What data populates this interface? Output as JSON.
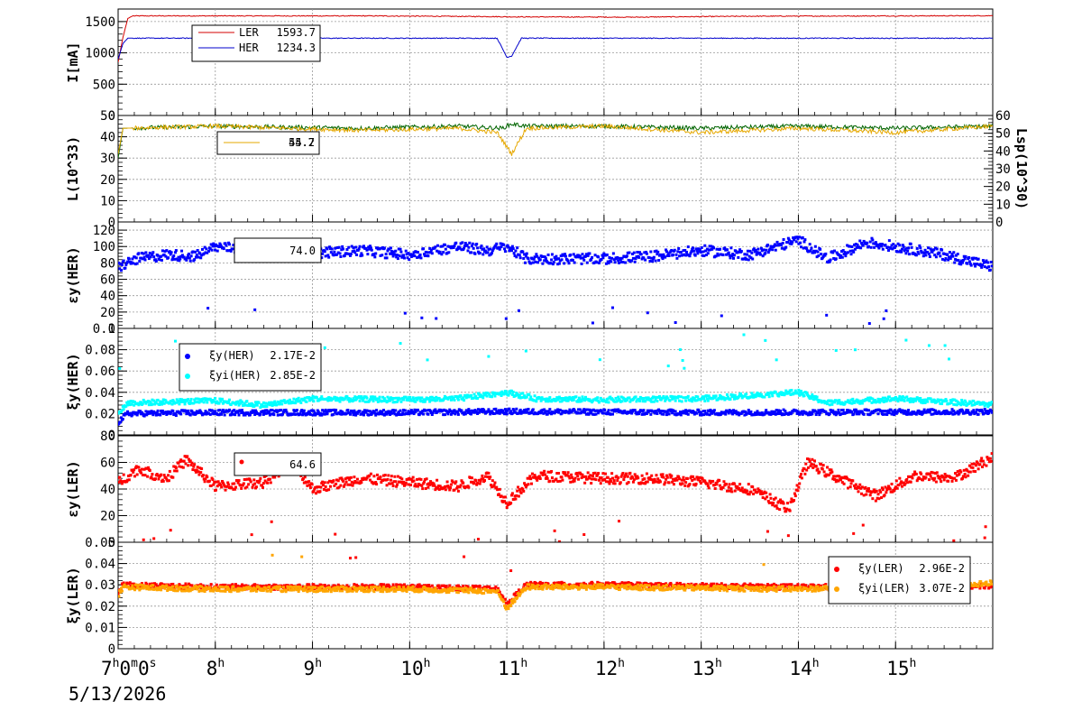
{
  "chart_data": {
    "type": "line",
    "x_start": "7h0m0s",
    "x_ticks": [
      "7h0m0s",
      "8h",
      "9h",
      "10h",
      "11h",
      "12h",
      "13h",
      "14h",
      "15h"
    ],
    "date": "5/13/2026",
    "x_range_hours": [
      7.0,
      16.0
    ],
    "panels": [
      {
        "id": "current",
        "ylabel": "I[mA]",
        "ylim": [
          0,
          1700
        ],
        "yticks": [
          "0",
          "500",
          "1000",
          "1500"
        ],
        "series": [
          {
            "name": "LER",
            "color": "#d40000",
            "legend_value": "1593.7",
            "x": [
              7.0,
              7.05,
              7.1,
              7.15,
              9.6,
              10.8,
              11.0,
              12.3,
              13.5,
              16.0
            ],
            "y": [
              850,
              1250,
              1550,
              1590,
              1590,
              1580,
              1575,
              1570,
              1585,
              1593
            ]
          },
          {
            "name": "HER",
            "color": "#0000cc",
            "legend_value": "1234.3",
            "x": [
              7.0,
              7.05,
              7.1,
              10.9,
              11.0,
              11.05,
              11.15,
              16.0
            ],
            "y": [
              900,
              1150,
              1234,
              1234,
              930,
              950,
              1234,
              1234
            ]
          }
        ]
      },
      {
        "id": "luminosity",
        "ylabel": "L(10^33)",
        "ylabel_right": "Lsp(10^30)",
        "ylim": [
          0,
          50
        ],
        "yticks": [
          "0",
          "10",
          "20",
          "30",
          "40",
          "50"
        ],
        "ylim_right": [
          0,
          60
        ],
        "yticks_right": [
          "0",
          "10",
          "20",
          "30",
          "40",
          "50",
          "60"
        ],
        "legend_values": [
          "55.7",
          "44.2"
        ],
        "series": [
          {
            "name": "L",
            "color": "#006400",
            "x": [
              7.0,
              7.05,
              8.0,
              9.5,
              10.5,
              10.95,
              11.05,
              11.2,
              12.0,
              13.0,
              14.0,
              15.0,
              16.0
            ],
            "y": [
              30,
              44,
              45,
              44,
              45,
              44,
              46,
              45,
              45,
              44,
              45,
              44,
              45
            ]
          },
          {
            "name": "Lsp",
            "color": "#e6a800",
            "x": [
              7.0,
              7.05,
              8.0,
              9.5,
              10.5,
              10.9,
              11.05,
              11.2,
              12.0,
              13.0,
              14.0,
              15.0,
              16.0
            ],
            "y": [
              32,
              44,
              45,
              43,
              44,
              42,
              32,
              44,
              45,
              42,
              44,
              42,
              45
            ]
          }
        ]
      },
      {
        "id": "eps_her",
        "ylabel": "εy(HER)",
        "ylim": [
          0,
          130
        ],
        "yticks": [
          "0",
          "20",
          "40",
          "60",
          "80",
          "100",
          "120"
        ],
        "legend_value": "74.0",
        "series": [
          {
            "name": "εy(HER)",
            "color": "#0000ff",
            "x": [
              7.0,
              7.2,
              7.5,
              7.8,
              8.0,
              8.5,
              9.0,
              9.5,
              10.0,
              10.5,
              10.8,
              11.0,
              11.2,
              11.5,
              12.0,
              12.5,
              13.0,
              13.5,
              14.0,
              14.3,
              14.7,
              15.0,
              15.5,
              16.0
            ],
            "y": [
              75,
              85,
              90,
              88,
              100,
              95,
              92,
              95,
              90,
              100,
              95,
              100,
              85,
              85,
              85,
              88,
              95,
              90,
              108,
              85,
              105,
              100,
              90,
              75
            ]
          }
        ]
      },
      {
        "id": "xi_her",
        "ylabel": "ξy(HER)",
        "ylim": [
          0,
          0.1
        ],
        "yticks": [
          "0",
          "0.02",
          "0.04",
          "0.06",
          "0.08",
          "0.1"
        ],
        "series": [
          {
            "name": "ξy(HER)",
            "legend_value": "2.17E-2",
            "color": "#0000ff",
            "x": [
              7.0,
              7.1,
              8.0,
              10.0,
              11.0,
              13.0,
              16.0
            ],
            "y": [
              0.012,
              0.02,
              0.021,
              0.021,
              0.022,
              0.021,
              0.0217
            ]
          },
          {
            "name": "ξyi(HER)",
            "legend_value": "2.85E-2",
            "color": "#00ffff",
            "x": [
              7.0,
              7.1,
              8.0,
              8.5,
              9.0,
              10.0,
              10.5,
              11.0,
              11.3,
              12.0,
              13.0,
              14.0,
              14.3,
              15.0,
              16.0
            ],
            "y": [
              0.02,
              0.03,
              0.032,
              0.028,
              0.034,
              0.033,
              0.034,
              0.04,
              0.034,
              0.033,
              0.034,
              0.04,
              0.03,
              0.034,
              0.0285
            ]
          }
        ]
      },
      {
        "id": "eps_ler",
        "ylabel": "εy(LER)",
        "ylim": [
          0,
          80
        ],
        "yticks": [
          "0",
          "20",
          "40",
          "60",
          "80"
        ],
        "legend_value": "64.6",
        "series": [
          {
            "name": "εy(LER)",
            "color": "#ff0000",
            "x": [
              7.0,
              7.2,
              7.5,
              7.7,
              8.0,
              8.5,
              8.8,
              9.0,
              9.5,
              10.0,
              10.5,
              10.8,
              11.0,
              11.3,
              12.0,
              12.5,
              13.0,
              13.5,
              13.9,
              14.1,
              14.5,
              14.8,
              15.2,
              15.6,
              16.0
            ],
            "y": [
              45,
              55,
              48,
              62,
              42,
              45,
              60,
              40,
              48,
              45,
              42,
              50,
              30,
              50,
              48,
              48,
              45,
              40,
              25,
              60,
              45,
              35,
              50,
              48,
              64
            ]
          }
        ]
      },
      {
        "id": "xi_ler",
        "ylabel": "ξy(LER)",
        "ylim": [
          0,
          0.05
        ],
        "yticks": [
          "0",
          "0.01",
          "0.02",
          "0.03",
          "0.04",
          "0.05"
        ],
        "series": [
          {
            "name": "ξy(LER)",
            "legend_value": "2.96E-2",
            "color": "#ff0000",
            "x": [
              7.0,
              7.05,
              8.0,
              10.0,
              10.9,
              11.0,
              11.2,
              12.0,
              14.0,
              16.0
            ],
            "y": [
              0.026,
              0.03,
              0.029,
              0.029,
              0.028,
              0.021,
              0.03,
              0.03,
              0.029,
              0.0296
            ]
          },
          {
            "name": "ξyi(LER)",
            "legend_value": "3.07E-2",
            "color": "#ffa500",
            "x": [
              7.0,
              7.05,
              8.0,
              10.0,
              10.9,
              11.0,
              11.2,
              12.0,
              14.0,
              16.0
            ],
            "y": [
              0.025,
              0.029,
              0.028,
              0.028,
              0.027,
              0.019,
              0.029,
              0.029,
              0.028,
              0.0307
            ]
          }
        ]
      }
    ],
    "grid": true
  },
  "legends": {
    "current": [
      {
        "label": "LER",
        "value": "1593.7",
        "color": "#d40000"
      },
      {
        "label": "HER",
        "value": "1234.3",
        "color": "#0000cc"
      }
    ],
    "luminosity": {
      "values": [
        "55.7",
        "44.2"
      ],
      "color": "#e6a800"
    },
    "eps_her": {
      "value": "74.0"
    },
    "xi_her": [
      {
        "label": "ξy(HER)",
        "value": "2.17E-2",
        "color": "#0000ff"
      },
      {
        "label": "ξyi(HER)",
        "value": "2.85E-2",
        "color": "#00ffff"
      }
    ],
    "eps_ler": {
      "value": "64.6"
    },
    "xi_ler": [
      {
        "label": "ξy(LER)",
        "value": "2.96E-2",
        "color": "#ff0000"
      },
      {
        "label": "ξyi(LER)",
        "value": "3.07E-2",
        "color": "#ffa500"
      }
    ]
  }
}
